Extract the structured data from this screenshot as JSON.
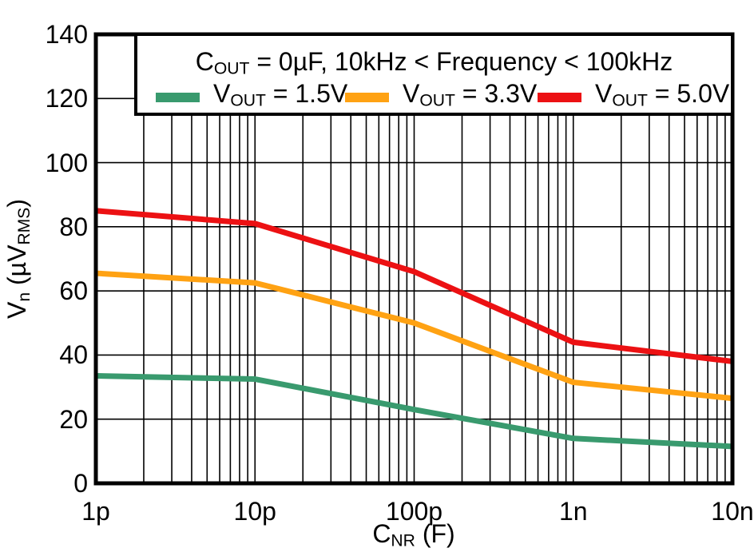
{
  "legend": {
    "title": "COUT = 0µF, 10kHz < Frequency < 100kHz",
    "title_parts": [
      {
        "t": "C"
      },
      {
        "s": "OUT"
      },
      {
        "t": " = 0µF, 10kHz < Frequency < 100kHz"
      }
    ],
    "entries": [
      {
        "label": "VOUT = 1.5V",
        "label_parts": [
          {
            "t": "V"
          },
          {
            "s": "OUT"
          },
          {
            "t": " = 1.5V"
          }
        ],
        "color": "#399A6E"
      },
      {
        "label": "VOUT = 3.3V",
        "label_parts": [
          {
            "t": "V"
          },
          {
            "s": "OUT"
          },
          {
            "t": " = 3.3V"
          }
        ],
        "color": "#FFA213"
      },
      {
        "label": "VOUT = 5.0V",
        "label_parts": [
          {
            "t": "V"
          },
          {
            "s": "OUT"
          },
          {
            "t": " = 5.0V"
          }
        ],
        "color": "#EC1113"
      }
    ]
  },
  "chart_data": {
    "type": "line",
    "title": "COUT = 0µF, 10kHz < Frequency < 100kHz",
    "xlabel": "CNR (F)",
    "ylabel": "Vn (µVRMS)",
    "xlabel_parts": [
      {
        "t": "C"
      },
      {
        "s": "NR"
      },
      {
        "t": " (F)"
      }
    ],
    "ylabel_parts": [
      {
        "t": "V"
      },
      {
        "s": "n"
      },
      {
        "t": " (µV"
      },
      {
        "s": "RMS"
      },
      {
        "t": ")"
      }
    ],
    "x_scale": "log",
    "x": [
      1e-12,
      1e-11,
      1e-10,
      1e-09,
      1e-08
    ],
    "x_tick_labels": [
      "1p",
      "10p",
      "100p",
      "1n",
      "10n"
    ],
    "y_ticks": [
      0,
      20,
      40,
      60,
      80,
      100,
      120,
      140
    ],
    "ylim": [
      0,
      140
    ],
    "grid": "on, full log minor grid, black",
    "legend_position": "top-inside",
    "frame_color": "#000000",
    "series": [
      {
        "name": "VOUT = 1.5V",
        "color": "#399A6E",
        "values": [
          33.5,
          32.5,
          23,
          14,
          11.5
        ]
      },
      {
        "name": "VOUT = 3.3V",
        "color": "#FFA213",
        "values": [
          65.5,
          62.5,
          50,
          31.5,
          26.5
        ]
      },
      {
        "name": "VOUT = 5.0V",
        "color": "#EC1113",
        "values": [
          85,
          81,
          66,
          44,
          38
        ]
      }
    ]
  }
}
